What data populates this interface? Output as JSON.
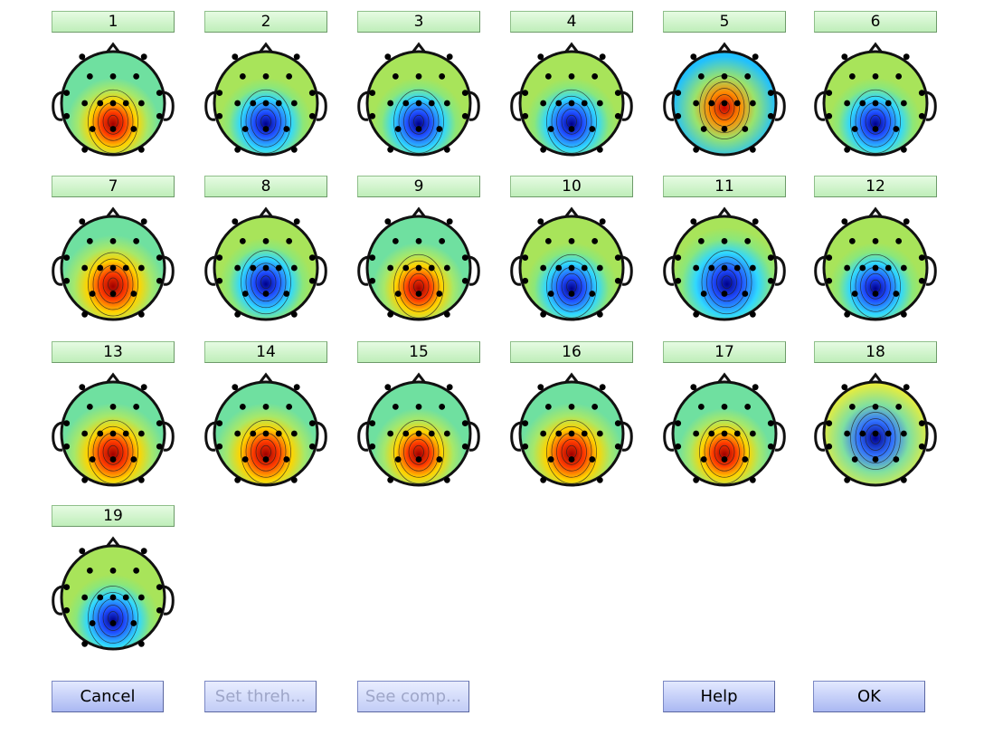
{
  "components": [
    {
      "label": "1",
      "blob": "red",
      "bx": 0.0,
      "by": 0.45,
      "r": 0.45
    },
    {
      "label": "2",
      "blob": "blue",
      "bx": 0.0,
      "by": 0.45,
      "r": 0.45
    },
    {
      "label": "3",
      "blob": "blue",
      "bx": 0.0,
      "by": 0.45,
      "r": 0.45
    },
    {
      "label": "4",
      "blob": "blue",
      "bx": 0.0,
      "by": 0.45,
      "r": 0.45
    },
    {
      "label": "5",
      "blob": "mixed-red-blue",
      "bx": 0.0,
      "by": 0.1,
      "r": 0.5
    },
    {
      "label": "6",
      "blob": "blue",
      "bx": 0.0,
      "by": 0.45,
      "r": 0.45
    },
    {
      "label": "7",
      "blob": "red",
      "bx": 0.0,
      "by": 0.4,
      "r": 0.5
    },
    {
      "label": "8",
      "blob": "blue",
      "bx": 0.0,
      "by": 0.35,
      "r": 0.45
    },
    {
      "label": "9",
      "blob": "red",
      "bx": 0.0,
      "by": 0.45,
      "r": 0.45
    },
    {
      "label": "10",
      "blob": "blue",
      "bx": 0.0,
      "by": 0.45,
      "r": 0.45
    },
    {
      "label": "11",
      "blob": "blue",
      "bx": 0.05,
      "by": 0.35,
      "r": 0.55
    },
    {
      "label": "12",
      "blob": "blue",
      "bx": 0.0,
      "by": 0.45,
      "r": 0.45
    },
    {
      "label": "13",
      "blob": "red",
      "bx": 0.0,
      "by": 0.45,
      "r": 0.5
    },
    {
      "label": "14",
      "blob": "red",
      "bx": 0.0,
      "by": 0.45,
      "r": 0.5
    },
    {
      "label": "15",
      "blob": "red",
      "bx": 0.0,
      "by": 0.45,
      "r": 0.45
    },
    {
      "label": "16",
      "blob": "red",
      "bx": 0.0,
      "by": 0.45,
      "r": 0.5
    },
    {
      "label": "17",
      "blob": "red",
      "bx": 0.0,
      "by": 0.45,
      "r": 0.45
    },
    {
      "label": "18",
      "blob": "blue-on-yellow",
      "bx": 0.0,
      "by": 0.1,
      "r": 0.55
    },
    {
      "label": "19",
      "blob": "blue",
      "bx": 0.0,
      "by": 0.5,
      "r": 0.45
    }
  ],
  "buttons": {
    "cancel": "Cancel",
    "set_threshold": "Set threh...",
    "see_comp": "See comp...",
    "help": "Help",
    "ok": "OK"
  },
  "colors": {
    "button_green": "#c6f1c1",
    "button_blue": "#b4c1f4",
    "scalp_base": "#9be36a"
  }
}
